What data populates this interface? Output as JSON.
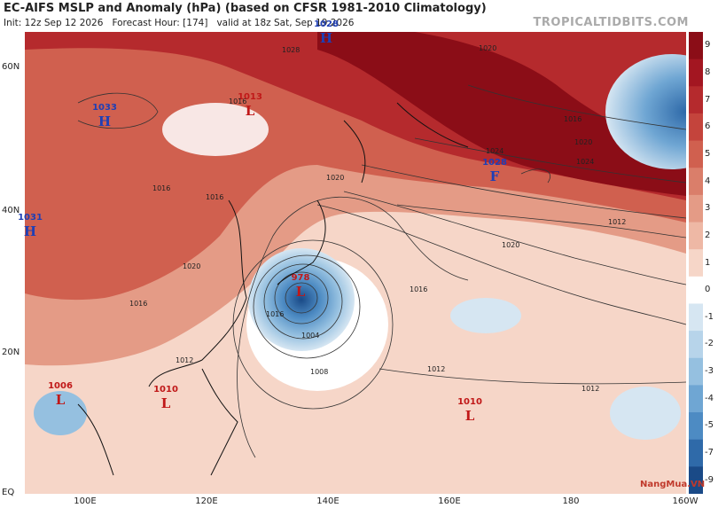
{
  "title": "EC-AIFS MSLP and Anomaly (hPa) (based on CFSR 1981-2010 Climatology)",
  "subtitle": {
    "init": "Init: 12z Sep 12 2026",
    "forecast_hour": "Forecast Hour: [174]",
    "valid": "valid at 18z Sat, Sep 19 2026"
  },
  "brand": "TROPICALTIDBITS.COM",
  "watermark": "NangMua.VN",
  "axes": {
    "lat_labels": [
      "60N",
      "40N",
      "20N",
      "EQ"
    ],
    "lon_labels": [
      "100E",
      "120E",
      "140E",
      "160E",
      "180",
      "160W"
    ]
  },
  "colorbar": {
    "labels": [
      "9",
      "8",
      "7",
      "6",
      "5",
      "4",
      "3",
      "2",
      "1",
      "0",
      "-1",
      "-2",
      "-3",
      "-4",
      "-5",
      "-7",
      "-9"
    ],
    "colors": [
      "#8b0d17",
      "#a31621",
      "#b52a2d",
      "#c4443c",
      "#d0604f",
      "#da7e6a",
      "#e49b86",
      "#eeb8a5",
      "#f6d6c8",
      "#ffffff",
      "#d6e6f2",
      "#b7d4ea",
      "#95c0e0",
      "#6fa6d3",
      "#4d8bc3",
      "#2f6aa9",
      "#1a4a87"
    ]
  },
  "pressure_centers": [
    {
      "value": "1028",
      "type": "H"
    },
    {
      "value": "1033",
      "type": "H"
    },
    {
      "value": "1013",
      "type": "L"
    },
    {
      "value": "1028",
      "type": "F"
    },
    {
      "value": "1031",
      "type": "H"
    },
    {
      "value": "978",
      "type": "L"
    },
    {
      "value": "1006",
      "type": "L"
    },
    {
      "value": "1010",
      "type": "L"
    },
    {
      "value": "1010",
      "type": "L"
    }
  ],
  "isobar_labels": [
    "1020",
    "1016",
    "1016",
    "1016",
    "1020",
    "1024",
    "1020",
    "1016",
    "1012",
    "1012",
    "1008",
    "1004",
    "1016",
    "1012",
    "1016",
    "1020",
    "1016",
    "1024",
    "1012",
    "1020",
    "1028"
  ]
}
